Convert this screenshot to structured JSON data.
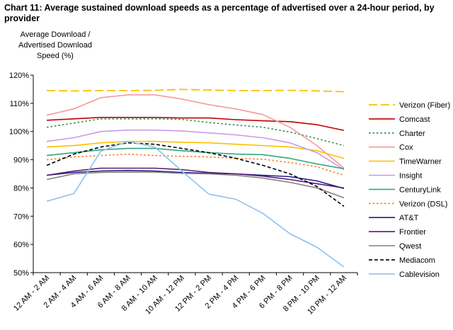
{
  "chart_data": {
    "type": "line",
    "title": "Chart 11: Average sustained download speeds as a percentage of advertised over a 24-hour period, by provider",
    "ylabel_lines": [
      "Average Download /",
      "Advertised Download",
      "Speed (%)"
    ],
    "xlabel": "",
    "ylim": [
      50,
      120
    ],
    "yticks": [
      50,
      60,
      70,
      80,
      90,
      100,
      110,
      120
    ],
    "ytick_labels": [
      "50%",
      "60%",
      "70%",
      "80%",
      "90%",
      "100%",
      "110%",
      "120%"
    ],
    "grid": false,
    "legend_position": "right",
    "categories": [
      "12 AM - 2 AM",
      "2 AM - 4 AM",
      "4 AM - 6 AM",
      "6 AM - 8 AM",
      "8 AM - 10 AM",
      "10 AM - 12 PM",
      "12 PM - 2 PM",
      "2 PM - 4 PM",
      "4 PM - 6 PM",
      "6 PM - 8 PM",
      "8 PM - 10 PM",
      "10 PM - 12 AM"
    ],
    "series": [
      {
        "name": "Verizon (Fiber)",
        "color": "#f5c400",
        "dash": "long",
        "values": [
          114.5,
          114.4,
          114.5,
          114.5,
          114.6,
          114.9,
          114.7,
          114.5,
          114.5,
          114.6,
          114.4,
          114.1
        ]
      },
      {
        "name": "Comcast",
        "color": "#c00000",
        "dash": "solid",
        "values": [
          104.0,
          104.5,
          105.0,
          105.0,
          105.0,
          104.8,
          104.8,
          104.2,
          103.8,
          103.5,
          102.4,
          100.4
        ]
      },
      {
        "name": "Charter",
        "color": "#2e8b57",
        "dash": "dot",
        "values": [
          101.5,
          103.0,
          104.5,
          104.5,
          104.5,
          104.3,
          103.2,
          102.3,
          101.5,
          99.8,
          97.5,
          95.0
        ]
      },
      {
        "name": "Cox",
        "color": "#f59a9a",
        "dash": "solid",
        "values": [
          105.8,
          108.0,
          112.0,
          113.0,
          113.0,
          111.5,
          109.5,
          108.0,
          106.0,
          101.5,
          95.0,
          87.0
        ]
      },
      {
        "name": "TimeWarner",
        "color": "#ffc000",
        "dash": "solid",
        "values": [
          94.5,
          95.0,
          96.0,
          96.5,
          96.5,
          96.2,
          96.0,
          95.5,
          95.0,
          94.5,
          93.2,
          90.5
        ]
      },
      {
        "name": "Insight",
        "color": "#c89be8",
        "dash": "solid",
        "values": [
          96.5,
          97.8,
          100.0,
          100.5,
          100.5,
          100.2,
          99.5,
          98.8,
          97.8,
          96.0,
          92.5,
          86.5
        ]
      },
      {
        "name": "CenturyLink",
        "color": "#2ea87e",
        "dash": "solid",
        "values": [
          91.5,
          92.5,
          93.5,
          94.0,
          94.0,
          93.2,
          92.5,
          92.0,
          91.8,
          90.5,
          88.5,
          86.8
        ]
      },
      {
        "name": "Verizon (DSL)",
        "color": "#f47c20",
        "dash": "dot",
        "values": [
          90.0,
          91.0,
          91.5,
          92.0,
          91.5,
          91.2,
          91.0,
          90.5,
          90.2,
          89.0,
          87.5,
          84.5
        ]
      },
      {
        "name": "AT&T",
        "color": "#1f1f8f",
        "dash": "solid",
        "values": [
          84.5,
          85.5,
          86.0,
          86.2,
          86.0,
          85.5,
          85.2,
          85.0,
          84.5,
          84.0,
          82.5,
          79.8
        ]
      },
      {
        "name": "Frontier",
        "color": "#5b1a6e",
        "dash": "solid",
        "values": [
          84.5,
          86.0,
          87.0,
          87.0,
          87.0,
          86.5,
          85.5,
          85.0,
          84.2,
          83.0,
          81.5,
          80.0
        ]
      },
      {
        "name": "Qwest",
        "color": "#7f7f7f",
        "dash": "solid",
        "values": [
          83.0,
          85.0,
          85.5,
          85.6,
          85.6,
          85.2,
          85.0,
          84.5,
          83.5,
          82.0,
          80.0,
          76.5
        ]
      },
      {
        "name": "Mediacom",
        "color": "#000000",
        "dash": "dash",
        "values": [
          88.0,
          92.0,
          94.5,
          96.0,
          95.5,
          94.0,
          92.5,
          90.5,
          88.0,
          85.0,
          80.5,
          73.5
        ]
      },
      {
        "name": "Cablevision",
        "color": "#8fc1f0",
        "dash": "solid",
        "values": [
          75.3,
          78.0,
          93.0,
          96.5,
          94.5,
          86.0,
          77.8,
          76.0,
          71.0,
          63.8,
          59.0,
          52.0
        ]
      }
    ]
  }
}
